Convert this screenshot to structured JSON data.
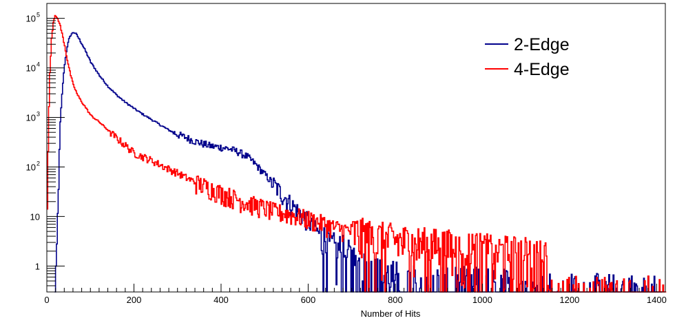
{
  "chart_data": {
    "type": "line",
    "title": "",
    "xlabel": "Number of Hits",
    "ylabel": "",
    "xlim": [
      0,
      1420
    ],
    "ylim": [
      0.3,
      200000
    ],
    "yscale": "log",
    "grid": false,
    "legend_position": "top-right",
    "x_ticks": [
      {
        "value": 0,
        "label": "0"
      },
      {
        "value": 200,
        "label": "200"
      },
      {
        "value": 400,
        "label": "400"
      },
      {
        "value": 600,
        "label": "600"
      },
      {
        "value": 800,
        "label": "800"
      },
      {
        "value": 1000,
        "label": "1000"
      },
      {
        "value": 1200,
        "label": "1200"
      },
      {
        "value": 1400,
        "label": "1400"
      }
    ],
    "y_ticks": [
      {
        "value": 1,
        "label": "1",
        "exp": ""
      },
      {
        "value": 10,
        "label": "10",
        "exp": ""
      },
      {
        "value": 100,
        "label": "10",
        "exp": "2"
      },
      {
        "value": 1000,
        "label": "10",
        "exp": "3"
      },
      {
        "value": 10000,
        "label": "10",
        "exp": "4"
      },
      {
        "value": 100000,
        "label": "10",
        "exp": "5"
      }
    ],
    "series": [
      {
        "name": "2-Edge",
        "color": "#00008b",
        "points": [
          [
            18,
            0.3
          ],
          [
            22,
            2
          ],
          [
            26,
            50
          ],
          [
            30,
            800
          ],
          [
            35,
            4000
          ],
          [
            40,
            12000
          ],
          [
            45,
            25000
          ],
          [
            50,
            38000
          ],
          [
            55,
            48000
          ],
          [
            60,
            52000
          ],
          [
            65,
            50000
          ],
          [
            70,
            43000
          ],
          [
            80,
            30000
          ],
          [
            90,
            20000
          ],
          [
            100,
            13000
          ],
          [
            120,
            7000
          ],
          [
            140,
            4200
          ],
          [
            160,
            2800
          ],
          [
            180,
            2000
          ],
          [
            200,
            1500
          ],
          [
            220,
            1150
          ],
          [
            240,
            900
          ],
          [
            260,
            700
          ],
          [
            280,
            550
          ],
          [
            300,
            450
          ],
          [
            320,
            390
          ],
          [
            340,
            330
          ],
          [
            360,
            290
          ],
          [
            380,
            260
          ],
          [
            400,
            250
          ],
          [
            420,
            230
          ],
          [
            440,
            200
          ],
          [
            460,
            160
          ],
          [
            480,
            110
          ],
          [
            500,
            70
          ],
          [
            520,
            45
          ],
          [
            540,
            28
          ],
          [
            560,
            18
          ],
          [
            580,
            12
          ],
          [
            600,
            8
          ],
          [
            620,
            5
          ],
          [
            640,
            3
          ],
          [
            660,
            2.2
          ],
          [
            680,
            2
          ],
          [
            700,
            1.4
          ],
          [
            720,
            1
          ],
          [
            740,
            0.8
          ],
          [
            760,
            0.7
          ],
          [
            800,
            0.6
          ],
          [
            840,
            0.5
          ],
          [
            900,
            0.5
          ],
          [
            1000,
            0.45
          ],
          [
            1100,
            0.4
          ],
          [
            1140,
            0.4
          ],
          [
            1200,
            0.35
          ],
          [
            1300,
            0.33
          ],
          [
            1410,
            0.33
          ]
        ]
      },
      {
        "name": "4-Edge",
        "color": "#ff0000",
        "points": [
          [
            0,
            15
          ],
          [
            3,
            800
          ],
          [
            6,
            8000
          ],
          [
            10,
            40000
          ],
          [
            14,
            85000
          ],
          [
            18,
            110000
          ],
          [
            22,
            105000
          ],
          [
            26,
            90000
          ],
          [
            30,
            70000
          ],
          [
            35,
            45000
          ],
          [
            40,
            28000
          ],
          [
            45,
            16000
          ],
          [
            50,
            10000
          ],
          [
            55,
            6500
          ],
          [
            60,
            4500
          ],
          [
            70,
            2800
          ],
          [
            80,
            2000
          ],
          [
            90,
            1500
          ],
          [
            100,
            1100
          ],
          [
            120,
            800
          ],
          [
            140,
            550
          ],
          [
            160,
            380
          ],
          [
            180,
            270
          ],
          [
            200,
            190
          ],
          [
            220,
            160
          ],
          [
            240,
            135
          ],
          [
            260,
            110
          ],
          [
            280,
            90
          ],
          [
            300,
            75
          ],
          [
            320,
            60
          ],
          [
            340,
            50
          ],
          [
            360,
            42
          ],
          [
            380,
            36
          ],
          [
            400,
            30
          ],
          [
            420,
            26
          ],
          [
            440,
            22
          ],
          [
            460,
            19
          ],
          [
            480,
            17
          ],
          [
            500,
            15
          ],
          [
            520,
            13
          ],
          [
            540,
            12
          ],
          [
            560,
            11
          ],
          [
            580,
            10
          ],
          [
            600,
            9
          ],
          [
            620,
            8
          ],
          [
            640,
            7
          ],
          [
            660,
            6
          ],
          [
            680,
            5.5
          ],
          [
            700,
            5
          ],
          [
            720,
            4.5
          ],
          [
            740,
            4
          ],
          [
            760,
            3.8
          ],
          [
            800,
            3.4
          ],
          [
            840,
            3
          ],
          [
            880,
            2.8
          ],
          [
            920,
            2.6
          ],
          [
            960,
            2.4
          ],
          [
            1000,
            2.2
          ],
          [
            1040,
            2
          ],
          [
            1080,
            1.9
          ],
          [
            1120,
            1.8
          ],
          [
            1145,
            1.7
          ],
          [
            1150,
            0.3
          ],
          [
            1420,
            0.3
          ]
        ]
      }
    ]
  }
}
